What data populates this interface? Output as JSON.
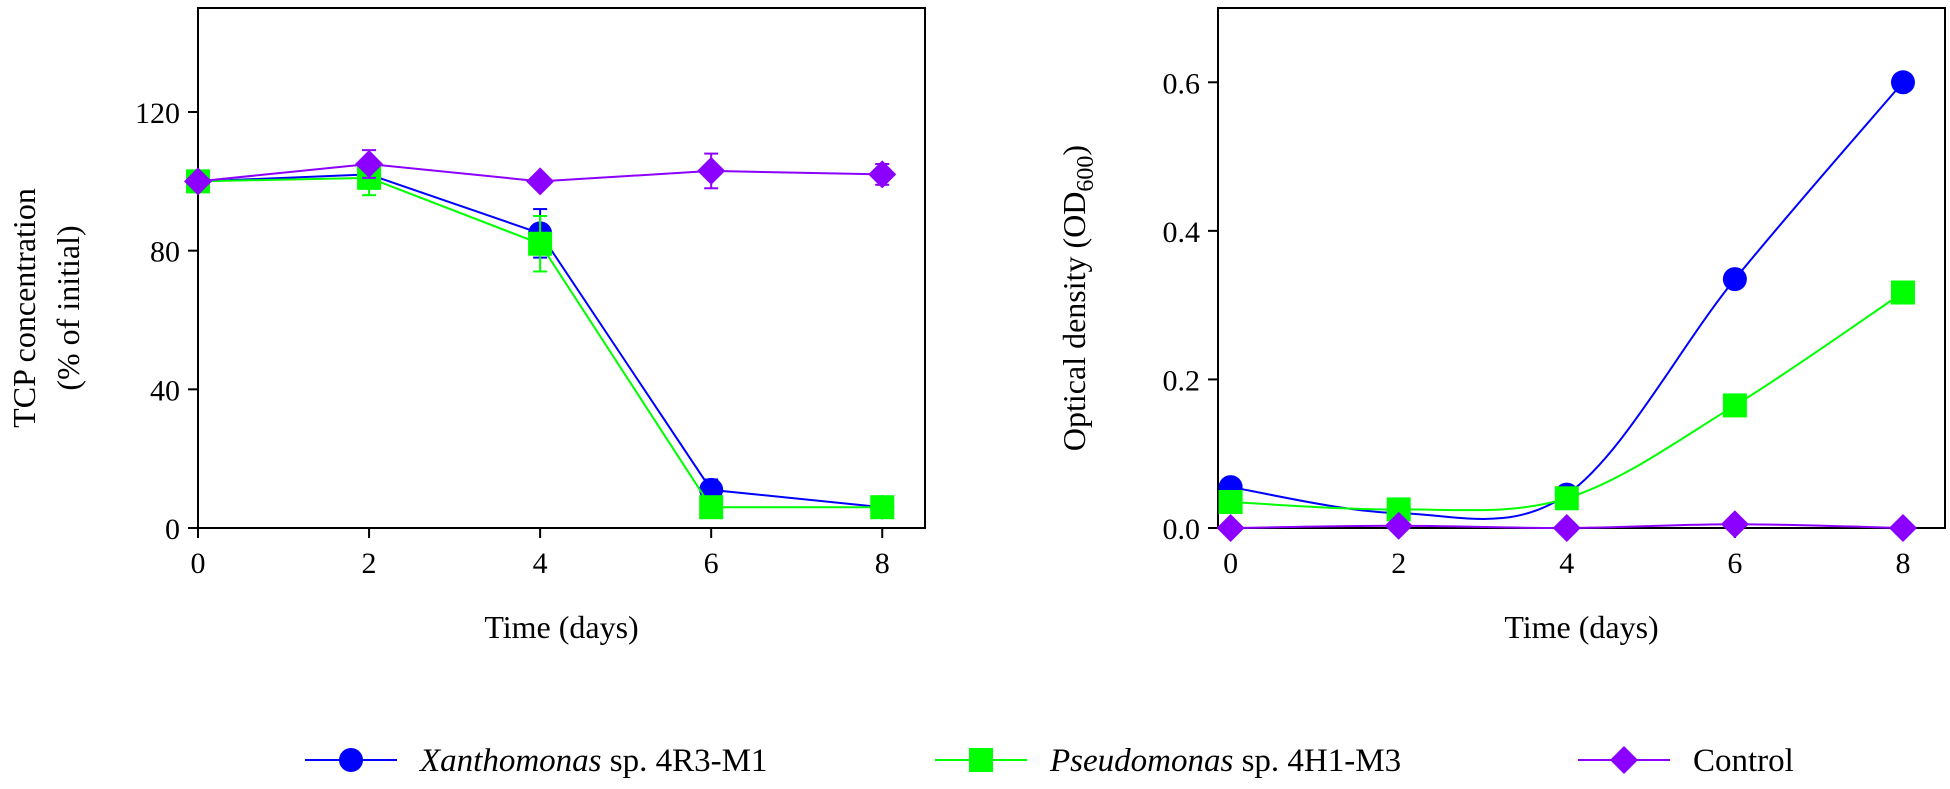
{
  "legend": [
    {
      "italic": "Xanthomonas",
      "rest": " sp. 4R3-M1",
      "color": "#0000ff",
      "marker": "circle"
    },
    {
      "italic": "Pseudomonas",
      "rest": " sp. 4H1-M3",
      "color": "#00ff00",
      "marker": "square"
    },
    {
      "italic": "",
      "rest": "Control",
      "color": "#8b00ff",
      "marker": "diamond"
    }
  ],
  "chart_data": [
    {
      "type": "line",
      "title": "",
      "xlabel": "Time (days)",
      "ylabel": [
        "TCP concentration",
        "(% of initial)"
      ],
      "xlim": [
        0,
        8.5
      ],
      "ylim": [
        0,
        150
      ],
      "xticks": [
        0,
        2,
        4,
        6,
        8
      ],
      "yticks": [
        0,
        40,
        80,
        120
      ],
      "x": [
        0,
        2,
        4,
        6,
        8
      ],
      "series": [
        {
          "name": "Xanthomonas sp. 4R3-M1",
          "color": "#0000ff",
          "marker": "circle",
          "values": [
            100,
            102,
            85,
            11,
            6
          ],
          "errors": [
            0,
            3,
            7,
            3,
            1
          ]
        },
        {
          "name": "Pseudomonas sp. 4H1-M3",
          "color": "#00ff00",
          "marker": "square",
          "values": [
            100,
            101,
            82,
            6,
            6
          ],
          "errors": [
            0,
            5,
            8,
            2,
            1
          ]
        },
        {
          "name": "Control",
          "color": "#8b00ff",
          "marker": "diamond",
          "values": [
            100,
            105,
            100,
            103,
            102
          ],
          "errors": [
            0,
            4,
            0,
            5,
            3
          ]
        }
      ]
    },
    {
      "type": "line",
      "title": "",
      "xlabel": "Time (days)",
      "ylabel_main": "Optical density (OD",
      "ylabel_sub": "600",
      "ylabel_end": ")",
      "xlim": [
        -0.15,
        8.5
      ],
      "ylim": [
        0,
        0.7
      ],
      "xticks": [
        0,
        2,
        4,
        6,
        8
      ],
      "yticks": [
        0.0,
        0.2,
        0.4,
        0.6
      ],
      "ytick_labels": [
        "0.0",
        "0.2",
        "0.4",
        "0.6"
      ],
      "x": [
        0,
        2,
        4,
        6,
        8
      ],
      "series": [
        {
          "name": "Xanthomonas sp. 4R3-M1",
          "color": "#0000ff",
          "marker": "circle",
          "values": [
            0.055,
            0.02,
            0.045,
            0.335,
            0.6
          ]
        },
        {
          "name": "Pseudomonas sp. 4H1-M3",
          "color": "#00ff00",
          "marker": "square",
          "values": [
            0.035,
            0.025,
            0.04,
            0.165,
            0.317
          ]
        },
        {
          "name": "Control",
          "color": "#8b00ff",
          "marker": "diamond",
          "values": [
            0.0,
            0.003,
            0.0,
            0.005,
            0.0
          ]
        }
      ]
    }
  ]
}
